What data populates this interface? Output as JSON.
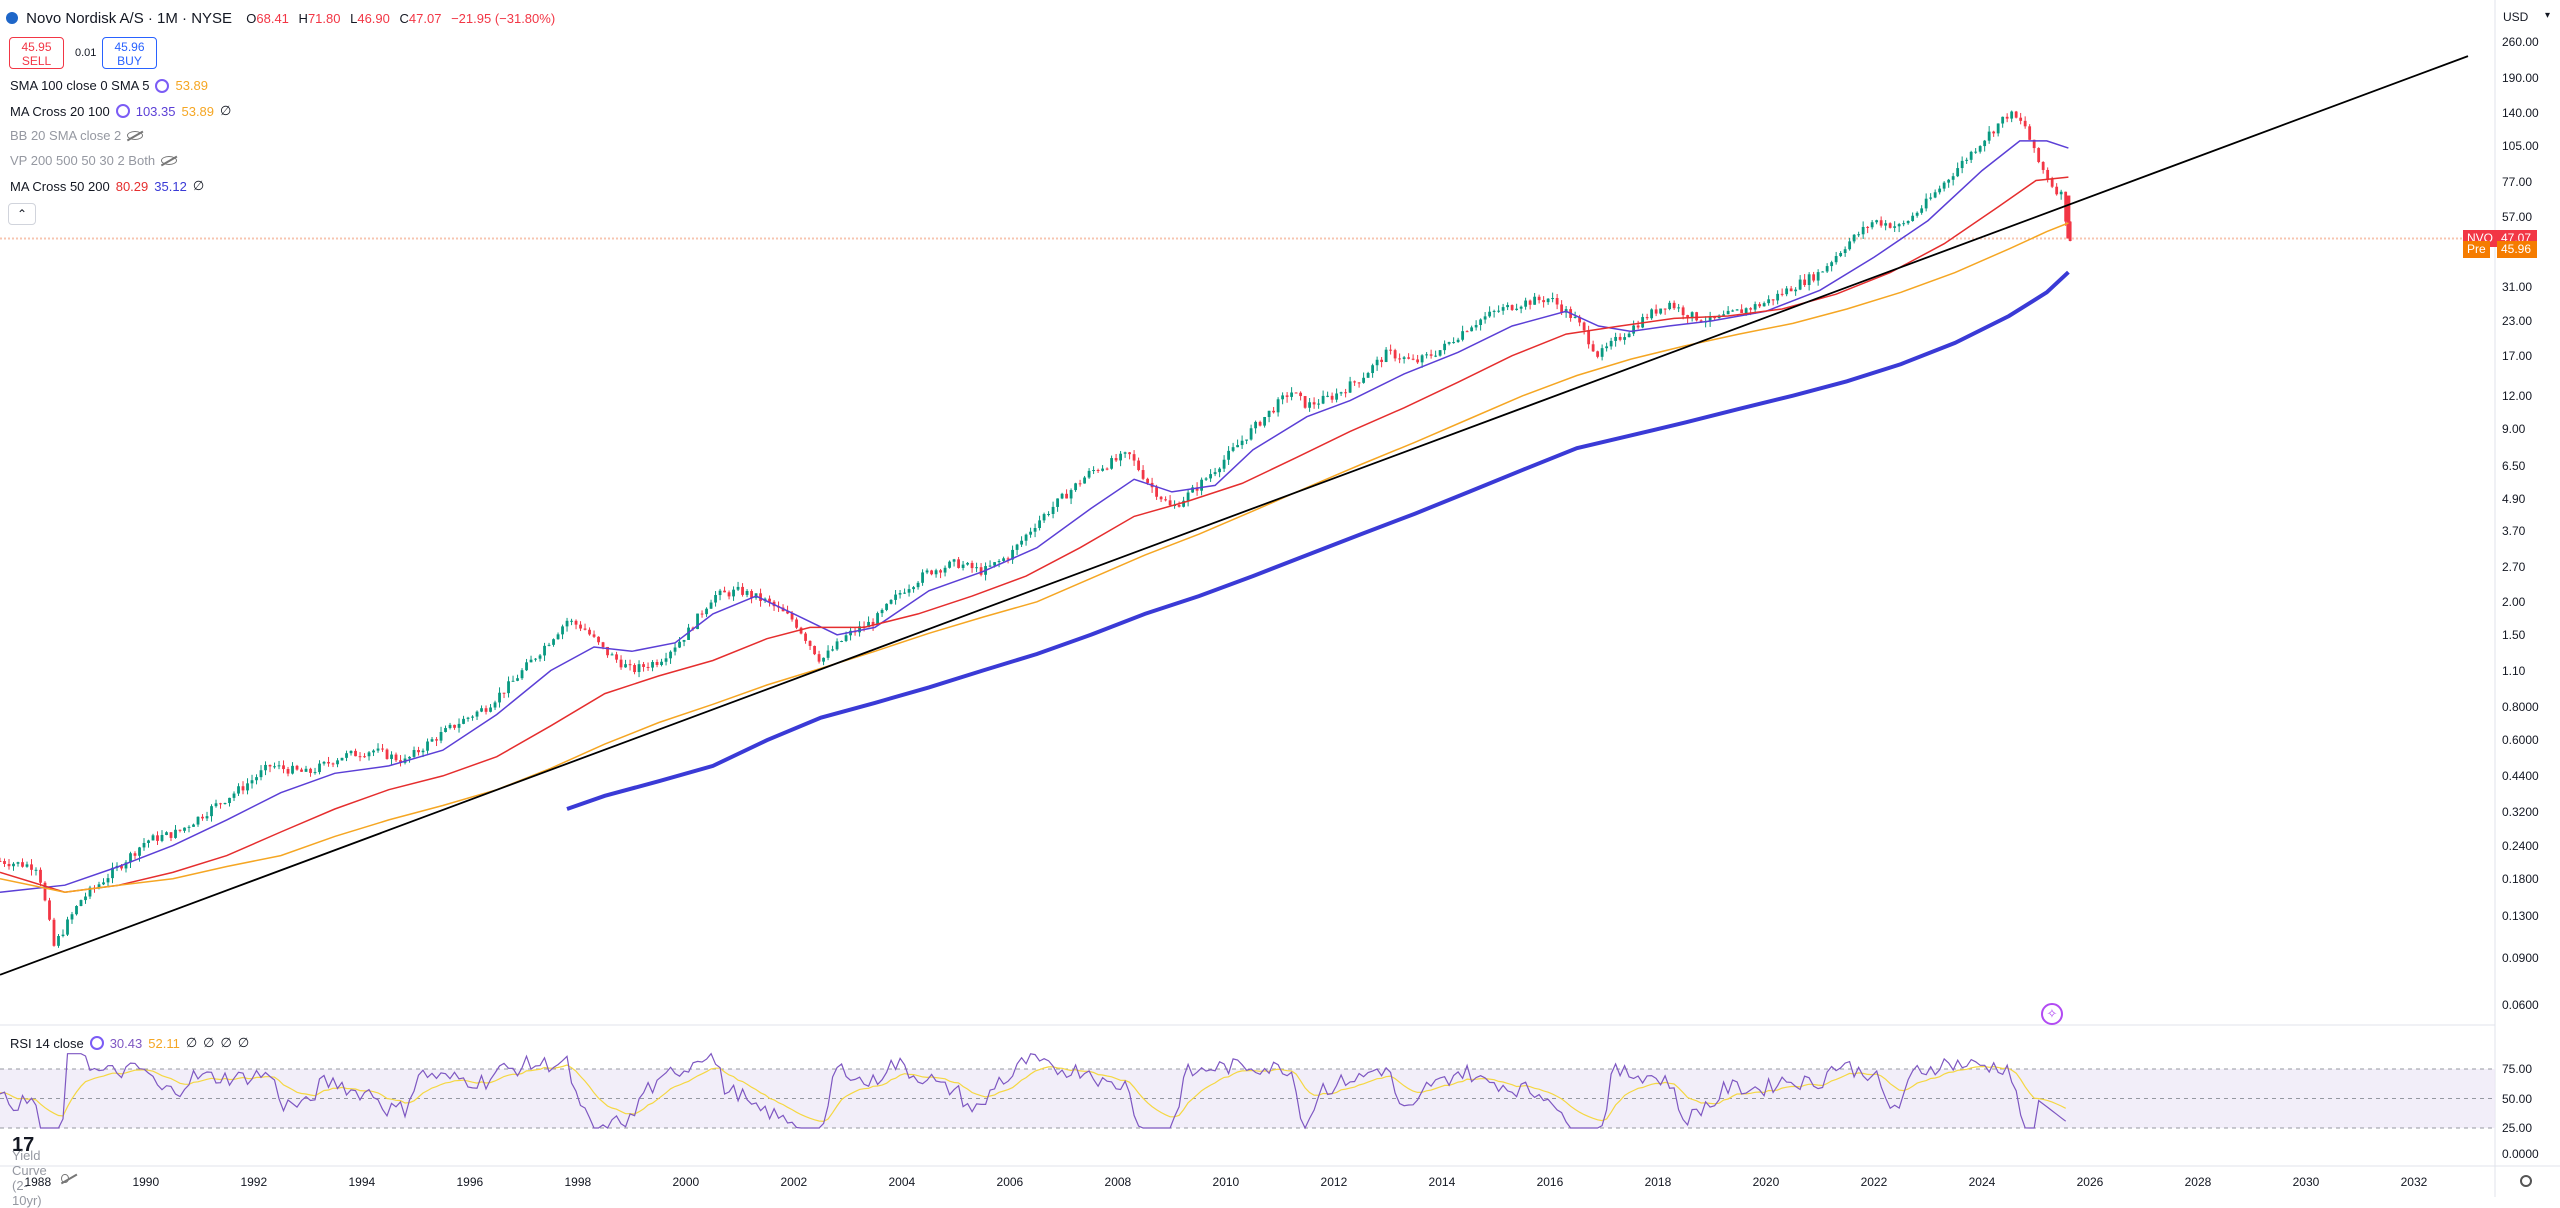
{
  "header": {
    "title": "Novo Nordisk A/S · 1M · NYSE",
    "ohlc": [
      {
        "key": "O",
        "value": "68.41"
      },
      {
        "key": "H",
        "value": "71.80"
      },
      {
        "key": "L",
        "value": "46.90"
      },
      {
        "key": "C",
        "value": "47.07"
      }
    ],
    "change": "−21.95 (−31.80%)"
  },
  "trade": {
    "sell_price": "45.95",
    "sell_label": "SELL",
    "spread": "0.01",
    "buy_price": "45.96",
    "buy_label": "BUY"
  },
  "indicators": [
    {
      "name": "SMA 100 close 0 SMA 5",
      "values": [
        "53.89"
      ],
      "colors": [
        "#f5a623"
      ],
      "settings_icon": true,
      "hidden": false
    },
    {
      "name": "MA Cross 20 100",
      "values": [
        "103.35",
        "53.89",
        "∅"
      ],
      "colors": [
        "#5b3fd6",
        "#f5a623",
        "#131722"
      ],
      "settings_icon": true,
      "hidden": false
    },
    {
      "name": "BB 20 SMA close 2",
      "values": [],
      "colors": [],
      "settings_icon": false,
      "hidden": true
    },
    {
      "name": "VP 200 500 50 30 2 Both",
      "values": [],
      "colors": [],
      "settings_icon": false,
      "hidden": true
    },
    {
      "name": "MA Cross 50 200",
      "values": [
        "80.29",
        "35.12",
        "∅"
      ],
      "colors": [
        "#e52e2e",
        "#3a3ad6",
        "#131722"
      ],
      "settings_icon": false,
      "hidden": false
    }
  ],
  "collapse_icon": "chevron-up-icon",
  "currency": "USD",
  "price_scale": [
    "260.00",
    "190.00",
    "140.00",
    "105.00",
    "77.00",
    "57.00",
    "31.00",
    "23.00",
    "17.00",
    "12.00",
    "9.00",
    "6.50",
    "4.90",
    "3.70",
    "2.70",
    "2.00",
    "1.50",
    "1.10",
    "0.8000",
    "0.6000",
    "0.4400",
    "0.3200",
    "0.2400",
    "0.1800",
    "0.1300",
    "0.0900",
    "0.0600"
  ],
  "price_tags": [
    {
      "label": "NVO",
      "value": "47.07",
      "color": "#f23645"
    },
    {
      "label": "Pre",
      "value": "45.96",
      "color": "#f57c00"
    }
  ],
  "time_scale": [
    "1988",
    "1990",
    "1992",
    "1994",
    "1996",
    "1998",
    "2000",
    "2002",
    "2004",
    "2006",
    "2008",
    "2010",
    "2012",
    "2014",
    "2016",
    "2018",
    "2020",
    "2022",
    "2024",
    "2026",
    "2028",
    "2030",
    "2032"
  ],
  "rsi": {
    "name": "RSI 14 close",
    "values": [
      "30.43",
      "52.11",
      "∅",
      "∅",
      "∅",
      "∅"
    ],
    "scale": [
      "75.00",
      "50.00",
      "25.00"
    ],
    "current": 30.43,
    "line_color": "#7e57c2",
    "ma_color": "#f5d742"
  },
  "yield_curve": {
    "name": "Yield Curve (2-10yr)",
    "scale": "0.0000",
    "hidden": true
  },
  "chart_data": {
    "type": "candlestick",
    "scale": "log",
    "x_range": [
      1987.3,
      2033.5
    ],
    "y_range": [
      0.05,
      300
    ],
    "last_close": 47.07,
    "premarket": 45.96,
    "price_path": [
      [
        1987.3,
        0.21
      ],
      [
        1988.0,
        0.2
      ],
      [
        1988.3,
        0.1
      ],
      [
        1988.8,
        0.15
      ],
      [
        1989.5,
        0.2
      ],
      [
        1990.0,
        0.25
      ],
      [
        1990.6,
        0.27
      ],
      [
        1991.2,
        0.33
      ],
      [
        1991.8,
        0.4
      ],
      [
        1992.3,
        0.48
      ],
      [
        1993.0,
        0.45
      ],
      [
        1993.6,
        0.52
      ],
      [
        1994.2,
        0.55
      ],
      [
        1994.8,
        0.5
      ],
      [
        1995.3,
        0.6
      ],
      [
        1995.8,
        0.7
      ],
      [
        1996.3,
        0.8
      ],
      [
        1996.8,
        1.0
      ],
      [
        1997.3,
        1.3
      ],
      [
        1997.8,
        1.7
      ],
      [
        1998.1,
        1.6
      ],
      [
        1998.5,
        1.3
      ],
      [
        1999.0,
        1.1
      ],
      [
        1999.5,
        1.2
      ],
      [
        2000.0,
        1.5
      ],
      [
        2000.5,
        2.1
      ],
      [
        2001.0,
        2.2
      ],
      [
        2001.5,
        2.0
      ],
      [
        2002.0,
        1.7
      ],
      [
        2002.5,
        1.2
      ],
      [
        2003.0,
        1.5
      ],
      [
        2003.5,
        1.7
      ],
      [
        2004.0,
        2.2
      ],
      [
        2004.5,
        2.6
      ],
      [
        2005.0,
        2.8
      ],
      [
        2005.5,
        2.6
      ],
      [
        2006.0,
        3.0
      ],
      [
        2006.5,
        4.0
      ],
      [
        2007.0,
        5.0
      ],
      [
        2007.5,
        6.2
      ],
      [
        2008.2,
        7.2
      ],
      [
        2008.6,
        5.5
      ],
      [
        2009.0,
        4.5
      ],
      [
        2009.5,
        5.5
      ],
      [
        2010.0,
        7.0
      ],
      [
        2010.5,
        9.0
      ],
      [
        2011.2,
        12.5
      ],
      [
        2011.5,
        11.0
      ],
      [
        2012.0,
        12.0
      ],
      [
        2012.5,
        14.0
      ],
      [
        2013.0,
        17.5
      ],
      [
        2013.5,
        16.0
      ],
      [
        2014.0,
        18.0
      ],
      [
        2014.5,
        22.0
      ],
      [
        2015.0,
        25.0
      ],
      [
        2015.5,
        27.0
      ],
      [
        2016.0,
        28.0
      ],
      [
        2016.5,
        23.0
      ],
      [
        2016.9,
        17.0
      ],
      [
        2017.3,
        20.0
      ],
      [
        2017.8,
        24.0
      ],
      [
        2018.2,
        27.0
      ],
      [
        2018.6,
        24.0
      ],
      [
        2019.0,
        23.0
      ],
      [
        2019.5,
        25.0
      ],
      [
        2020.0,
        27.0
      ],
      [
        2020.5,
        31.0
      ],
      [
        2021.0,
        35.0
      ],
      [
        2021.5,
        45.0
      ],
      [
        2022.0,
        55.0
      ],
      [
        2022.5,
        52.0
      ],
      [
        2023.0,
        65.0
      ],
      [
        2023.5,
        85.0
      ],
      [
        2024.0,
        110.0
      ],
      [
        2024.5,
        140.0
      ],
      [
        2024.8,
        125.0
      ],
      [
        2025.0,
        95.0
      ],
      [
        2025.3,
        75.0
      ],
      [
        2025.5,
        68.0
      ],
      [
        2025.6,
        47.0
      ]
    ],
    "series": [
      {
        "name": "MA Cross 20 100",
        "color": "#5b3fd6",
        "width": 1.5,
        "points": [
          [
            1987.3,
            0.16
          ],
          [
            1988.5,
            0.17
          ],
          [
            1989.5,
            0.2
          ],
          [
            1990.5,
            0.24
          ],
          [
            1991.5,
            0.3
          ],
          [
            1992.5,
            0.38
          ],
          [
            1993.5,
            0.45
          ],
          [
            1994.5,
            0.48
          ],
          [
            1995.5,
            0.55
          ],
          [
            1996.5,
            0.75
          ],
          [
            1997.5,
            1.1
          ],
          [
            1998.3,
            1.35
          ],
          [
            1999.0,
            1.3
          ],
          [
            1999.8,
            1.4
          ],
          [
            2000.5,
            1.8
          ],
          [
            2001.3,
            2.1
          ],
          [
            2002.0,
            1.8
          ],
          [
            2002.8,
            1.5
          ],
          [
            2003.5,
            1.6
          ],
          [
            2004.5,
            2.2
          ],
          [
            2005.5,
            2.6
          ],
          [
            2006.5,
            3.2
          ],
          [
            2007.5,
            4.5
          ],
          [
            2008.3,
            5.8
          ],
          [
            2009.0,
            5.2
          ],
          [
            2009.8,
            5.5
          ],
          [
            2010.5,
            7.5
          ],
          [
            2011.5,
            10.0
          ],
          [
            2012.3,
            11.5
          ],
          [
            2013.3,
            14.5
          ],
          [
            2014.3,
            17.5
          ],
          [
            2015.3,
            22.0
          ],
          [
            2016.3,
            25.0
          ],
          [
            2016.9,
            22.0
          ],
          [
            2017.5,
            21.0
          ],
          [
            2018.2,
            22.0
          ],
          [
            2019.0,
            23.0
          ],
          [
            2020.0,
            25.0
          ],
          [
            2021.0,
            30.0
          ],
          [
            2022.0,
            40.0
          ],
          [
            2023.0,
            55.0
          ],
          [
            2024.0,
            85.0
          ],
          [
            2024.7,
            110.0
          ],
          [
            2025.2,
            110.0
          ],
          [
            2025.6,
            103.35
          ]
        ]
      },
      {
        "name": "MA Cross 50 200",
        "color": "#e52e2e",
        "width": 1.5,
        "points": [
          [
            1987.3,
            0.19
          ],
          [
            1988.5,
            0.16
          ],
          [
            1989.5,
            0.17
          ],
          [
            1990.5,
            0.19
          ],
          [
            1991.5,
            0.22
          ],
          [
            1992.5,
            0.27
          ],
          [
            1993.5,
            0.33
          ],
          [
            1994.5,
            0.39
          ],
          [
            1995.5,
            0.44
          ],
          [
            1996.5,
            0.52
          ],
          [
            1997.5,
            0.68
          ],
          [
            1998.5,
            0.9
          ],
          [
            1999.5,
            1.05
          ],
          [
            2000.5,
            1.2
          ],
          [
            2001.5,
            1.45
          ],
          [
            2002.3,
            1.6
          ],
          [
            2003.3,
            1.6
          ],
          [
            2004.3,
            1.8
          ],
          [
            2005.3,
            2.1
          ],
          [
            2006.3,
            2.5
          ],
          [
            2007.3,
            3.2
          ],
          [
            2008.3,
            4.2
          ],
          [
            2009.3,
            4.8
          ],
          [
            2010.3,
            5.6
          ],
          [
            2011.3,
            7.0
          ],
          [
            2012.3,
            8.8
          ],
          [
            2013.3,
            10.8
          ],
          [
            2014.3,
            13.5
          ],
          [
            2015.3,
            17.0
          ],
          [
            2016.3,
            20.5
          ],
          [
            2017.3,
            22.0
          ],
          [
            2018.3,
            23.5
          ],
          [
            2019.3,
            24.0
          ],
          [
            2020.3,
            25.5
          ],
          [
            2021.3,
            29.0
          ],
          [
            2022.3,
            35.0
          ],
          [
            2023.3,
            45.0
          ],
          [
            2024.3,
            62.0
          ],
          [
            2025.0,
            78.0
          ],
          [
            2025.6,
            80.29
          ]
        ]
      },
      {
        "name": "SMA 100 close 0 SMA 5",
        "color": "#f5a623",
        "width": 1.5,
        "points": [
          [
            1987.3,
            0.18
          ],
          [
            1988.5,
            0.16
          ],
          [
            1989.5,
            0.17
          ],
          [
            1990.5,
            0.18
          ],
          [
            1991.5,
            0.2
          ],
          [
            1992.5,
            0.22
          ],
          [
            1993.5,
            0.26
          ],
          [
            1994.5,
            0.3
          ],
          [
            1995.5,
            0.34
          ],
          [
            1996.5,
            0.39
          ],
          [
            1997.5,
            0.47
          ],
          [
            1998.5,
            0.58
          ],
          [
            1999.5,
            0.7
          ],
          [
            2000.5,
            0.82
          ],
          [
            2001.5,
            0.97
          ],
          [
            2002.5,
            1.12
          ],
          [
            2003.5,
            1.3
          ],
          [
            2004.5,
            1.52
          ],
          [
            2005.5,
            1.75
          ],
          [
            2006.5,
            2.0
          ],
          [
            2007.5,
            2.45
          ],
          [
            2008.5,
            3.0
          ],
          [
            2009.5,
            3.6
          ],
          [
            2010.5,
            4.4
          ],
          [
            2011.5,
            5.4
          ],
          [
            2012.5,
            6.6
          ],
          [
            2013.5,
            8.0
          ],
          [
            2014.5,
            9.8
          ],
          [
            2015.5,
            12.0
          ],
          [
            2016.5,
            14.3
          ],
          [
            2017.5,
            16.5
          ],
          [
            2018.5,
            18.5
          ],
          [
            2019.5,
            20.5
          ],
          [
            2020.5,
            22.5
          ],
          [
            2021.5,
            25.5
          ],
          [
            2022.5,
            29.5
          ],
          [
            2023.5,
            35.0
          ],
          [
            2024.5,
            43.0
          ],
          [
            2025.2,
            50.0
          ],
          [
            2025.6,
            53.89
          ]
        ]
      },
      {
        "name": "MA Cross 50 200",
        "color": "#3a3ad6",
        "width": 4,
        "points": [
          [
            1997.8,
            0.33
          ],
          [
            1998.5,
            0.37
          ],
          [
            1999.5,
            0.42
          ],
          [
            2000.5,
            0.48
          ],
          [
            2001.5,
            0.6
          ],
          [
            2002.5,
            0.73
          ],
          [
            2003.5,
            0.83
          ],
          [
            2004.5,
            0.95
          ],
          [
            2005.5,
            1.1
          ],
          [
            2006.5,
            1.27
          ],
          [
            2007.5,
            1.5
          ],
          [
            2008.5,
            1.8
          ],
          [
            2009.5,
            2.1
          ],
          [
            2010.5,
            2.5
          ],
          [
            2011.5,
            3.0
          ],
          [
            2012.5,
            3.6
          ],
          [
            2013.5,
            4.3
          ],
          [
            2014.5,
            5.2
          ],
          [
            2015.5,
            6.3
          ],
          [
            2016.5,
            7.6
          ],
          [
            2017.5,
            8.5
          ],
          [
            2018.5,
            9.5
          ],
          [
            2019.5,
            10.7
          ],
          [
            2020.5,
            12.0
          ],
          [
            2021.5,
            13.6
          ],
          [
            2022.5,
            15.8
          ],
          [
            2023.5,
            19.0
          ],
          [
            2024.5,
            24.0
          ],
          [
            2025.2,
            29.5
          ],
          [
            2025.6,
            35.12
          ]
        ]
      },
      {
        "name": "",
        "color": "#000000",
        "width": 1.8,
        "points": [
          [
            1987.3,
            0.078
          ],
          [
            2033.0,
            230.0
          ]
        ]
      }
    ]
  }
}
